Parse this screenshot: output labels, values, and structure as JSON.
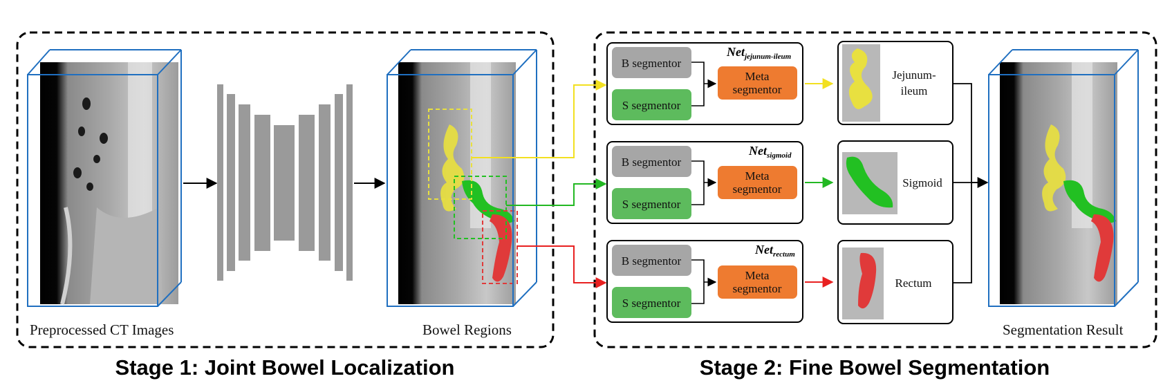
{
  "stage1": {
    "title": "Stage 1: Joint Bowel Localization",
    "input_label": "Preprocessed CT Images",
    "output_label": "Bowel Regions"
  },
  "stage2": {
    "title": "Stage 2: Fine Bowel Segmentation",
    "result_label": "Segmentation Result",
    "branches": [
      {
        "net_main": "Net",
        "net_sub": "jejunum-ileum",
        "b_label": "B segmentor",
        "s_label": "S segmentor",
        "meta_line1": "Meta",
        "meta_line2": "segmentor",
        "organ_line1": "Jejunum-",
        "organ_line2": "ileum",
        "color": "#f2e020"
      },
      {
        "net_main": "Net",
        "net_sub": "sigmoid",
        "b_label": "B segmentor",
        "s_label": "S segmentor",
        "meta_line1": "Meta",
        "meta_line2": "segmentor",
        "organ_line1": "Sigmoid",
        "organ_line2": "",
        "color": "#22b822"
      },
      {
        "net_main": "Net",
        "net_sub": "rectum",
        "b_label": "B segmentor",
        "s_label": "S segmentor",
        "meta_line1": "Meta",
        "meta_line2": "segmentor",
        "organ_line1": "Rectum",
        "organ_line2": "",
        "color": "#e82020"
      }
    ]
  },
  "colors": {
    "volume_edge": "#1f6fc0",
    "b_segmentor": "#a6a6a6",
    "s_segmentor": "#5dbb5d",
    "meta_segmentor": "#ee7b30",
    "encoder_bars": "#9a9a9a",
    "jejunum": "#e8e040",
    "sigmoid": "#22c022",
    "rectum": "#e03a3a"
  }
}
